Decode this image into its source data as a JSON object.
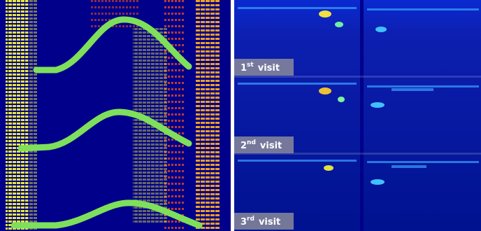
{
  "labels": [
    {
      "number": "1",
      "suffix": "st",
      "word": "visit"
    },
    {
      "number": "2",
      "suffix": "nd",
      "word": "visit"
    },
    {
      "number": "3",
      "suffix": "rd",
      "word": "visit"
    }
  ]
}
